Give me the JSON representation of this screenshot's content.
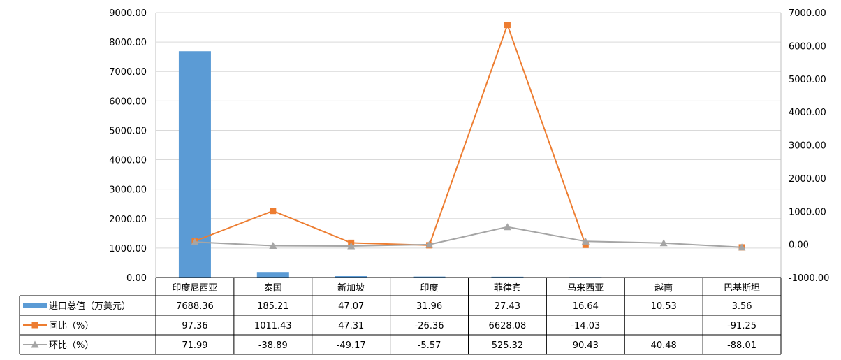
{
  "chart_data": {
    "type": "bar",
    "categories": [
      "印度尼西亚",
      "泰国",
      "新加坡",
      "印度",
      "菲律宾",
      "马来西亚",
      "越南",
      "巴基斯坦"
    ],
    "series": [
      {
        "name": "进口总值（万美元）",
        "kind": "bar",
        "axis": "left",
        "color": "#5b9bd5",
        "values": [
          7688.36,
          185.21,
          47.07,
          31.96,
          27.43,
          16.64,
          10.53,
          3.56
        ],
        "labels": [
          "7688.36",
          "185.21",
          "47.07",
          "31.96",
          "27.43",
          "16.64",
          "10.53",
          "3.56"
        ]
      },
      {
        "name": "同比（%）",
        "kind": "line",
        "axis": "right",
        "color": "#ed7d31",
        "marker": "square",
        "values": [
          97.36,
          1011.43,
          47.31,
          -26.36,
          6628.08,
          -14.03,
          null,
          -91.25
        ],
        "labels": [
          "97.36",
          "1011.43",
          "47.31",
          "-26.36",
          "6628.08",
          "-14.03",
          "",
          "-91.25"
        ]
      },
      {
        "name": "环比（%）",
        "kind": "line",
        "axis": "right",
        "color": "#a5a5a5",
        "marker": "triangle",
        "values": [
          71.99,
          -38.89,
          -49.17,
          -5.57,
          525.32,
          90.43,
          40.48,
          -88.01
        ],
        "labels": [
          "71.99",
          "-38.89",
          "-49.17",
          "-5.57",
          "525.32",
          "90.43",
          "40.48",
          "-88.01"
        ]
      }
    ],
    "y_left": {
      "min": 0,
      "max": 9000,
      "step": 1000,
      "ticks": [
        "0.00",
        "1000.00",
        "2000.00",
        "3000.00",
        "4000.00",
        "5000.00",
        "6000.00",
        "7000.00",
        "8000.00",
        "9000.00"
      ]
    },
    "y_right": {
      "min": -1000,
      "max": 7000,
      "step": 1000,
      "ticks": [
        "-1000.00",
        "0.00",
        "1000.00",
        "2000.00",
        "3000.00",
        "4000.00",
        "5000.00",
        "6000.00",
        "7000.00"
      ]
    },
    "grid": true,
    "legend": "data-table"
  }
}
